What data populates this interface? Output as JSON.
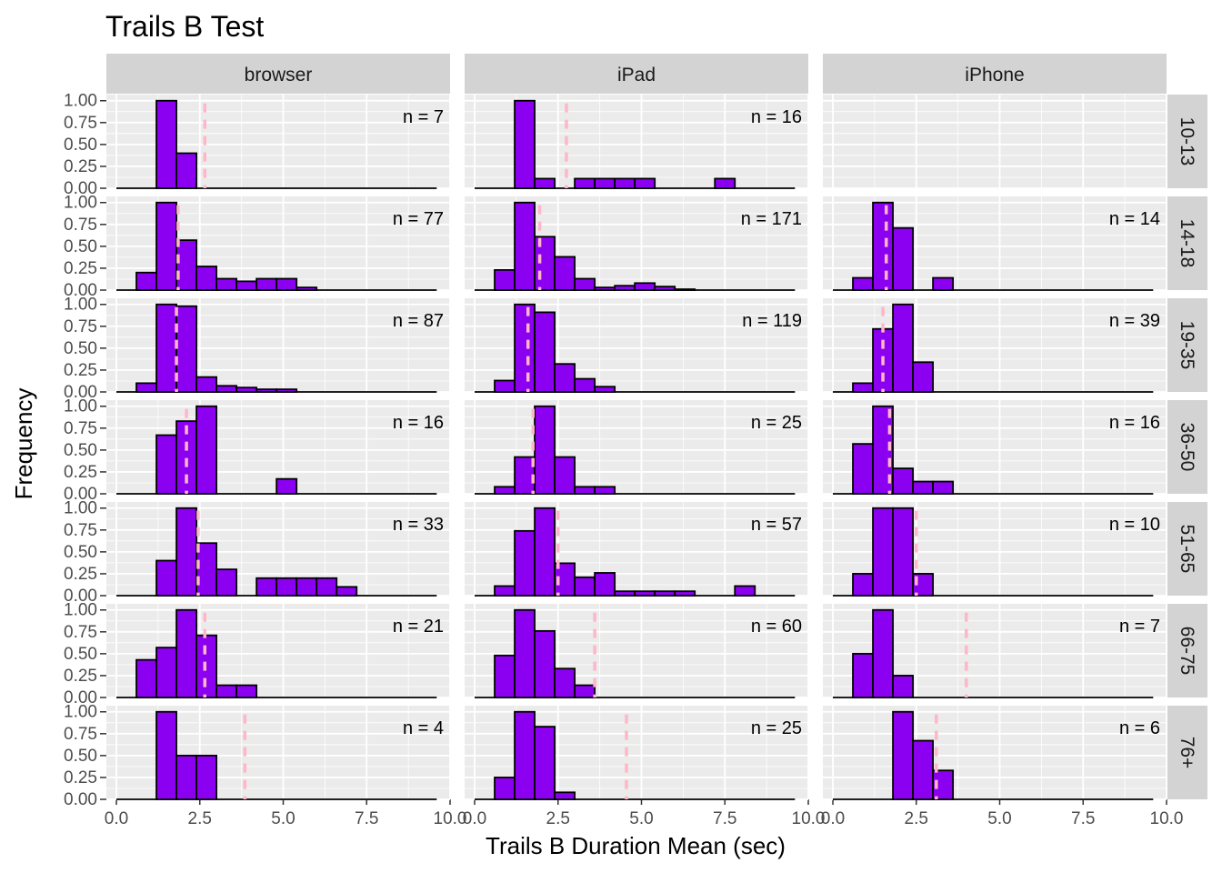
{
  "chart_data": {
    "type": "bar",
    "title": "Trails B Test",
    "xlabel": "Trails B Duration Mean (sec)",
    "ylabel": "Frequency",
    "xlim": [
      -0.3,
      10.0
    ],
    "ylim": [
      0,
      1.07
    ],
    "x_ticks": [
      0.0,
      2.5,
      5.0,
      7.5,
      10.0
    ],
    "x_tick_labels": [
      "0.0",
      "2.5",
      "5.0",
      "7.5",
      "10.0"
    ],
    "y_ticks": [
      0.0,
      0.25,
      0.5,
      0.75,
      1.0
    ],
    "y_tick_labels": [
      "0.00",
      "0.25",
      "0.50",
      "0.75",
      "1.00"
    ],
    "bin_start": 0.6,
    "bin_width": 0.6,
    "bins": 15,
    "baseline_x": [
      0,
      9.6
    ],
    "columns": [
      "browser",
      "iPad",
      "iPhone"
    ],
    "rows": [
      "10-13",
      "14-18",
      "19-35",
      "36-50",
      "51-65",
      "66-75",
      "76+"
    ],
    "grid": true,
    "legend": "none",
    "colors": {
      "bar_fill": "#8b00f0",
      "bar_stroke": "#000000",
      "mean_line": "#ffb6c8",
      "panel_bg": "#ebebeb",
      "grid": "#ffffff",
      "strip_bg": "#d3d3d3"
    },
    "panels": [
      {
        "col": "browser",
        "row": "10-13",
        "n_label": "n = 7",
        "mean": 2.65,
        "values": [
          0,
          1.0,
          0.4,
          0,
          0,
          0,
          0,
          0,
          0,
          0,
          0,
          0,
          0,
          0,
          0
        ]
      },
      {
        "col": "iPad",
        "row": "10-13",
        "n_label": "n = 16",
        "mean": 2.75,
        "values": [
          0,
          1.0,
          0.11,
          0,
          0.11,
          0.11,
          0.11,
          0.11,
          0,
          0,
          0,
          0.11,
          0,
          0,
          0
        ]
      },
      {
        "col": "iPhone",
        "row": "10-13",
        "n_label": "",
        "mean": null,
        "values": []
      },
      {
        "col": "browser",
        "row": "14-18",
        "n_label": "n = 77",
        "mean": 1.85,
        "values": [
          0.2,
          1.0,
          0.57,
          0.27,
          0.13,
          0.1,
          0.13,
          0.13,
          0.03,
          0,
          0,
          0,
          0,
          0,
          0
        ]
      },
      {
        "col": "iPad",
        "row": "14-18",
        "n_label": "n = 171",
        "mean": 1.95,
        "values": [
          0.23,
          1.0,
          0.61,
          0.38,
          0.13,
          0.03,
          0.05,
          0.08,
          0.04,
          0.01,
          0,
          0,
          0,
          0,
          0
        ]
      },
      {
        "col": "iPhone",
        "row": "14-18",
        "n_label": "n = 14",
        "mean": 1.6,
        "values": [
          0.14,
          1.0,
          0.71,
          0,
          0.14,
          0,
          0,
          0,
          0,
          0,
          0,
          0,
          0,
          0,
          0
        ]
      },
      {
        "col": "browser",
        "row": "19-35",
        "n_label": "n = 87",
        "mean": 1.8,
        "values": [
          0.1,
          1.0,
          0.98,
          0.17,
          0.07,
          0.05,
          0.03,
          0.03,
          0,
          0,
          0,
          0,
          0,
          0,
          0
        ]
      },
      {
        "col": "iPad",
        "row": "19-35",
        "n_label": "n = 119",
        "mean": 1.6,
        "values": [
          0.13,
          1.0,
          0.91,
          0.32,
          0.15,
          0.06,
          0,
          0,
          0,
          0,
          0,
          0,
          0,
          0,
          0
        ]
      },
      {
        "col": "iPhone",
        "row": "19-35",
        "n_label": "n = 39",
        "mean": 1.5,
        "values": [
          0.1,
          0.72,
          1.0,
          0.34,
          0,
          0,
          0,
          0,
          0,
          0,
          0,
          0,
          0,
          0,
          0
        ]
      },
      {
        "col": "browser",
        "row": "36-50",
        "n_label": "n = 16",
        "mean": 2.1,
        "values": [
          0,
          0.67,
          0.83,
          1.0,
          0,
          0,
          0,
          0.17,
          0,
          0,
          0,
          0,
          0,
          0,
          0
        ]
      },
      {
        "col": "iPad",
        "row": "36-50",
        "n_label": "n = 25",
        "mean": 1.75,
        "values": [
          0.08,
          0.42,
          1.0,
          0.42,
          0.08,
          0.08,
          0,
          0,
          0,
          0,
          0,
          0,
          0,
          0,
          0
        ]
      },
      {
        "col": "iPhone",
        "row": "36-50",
        "n_label": "n = 16",
        "mean": 1.7,
        "values": [
          0.57,
          1.0,
          0.29,
          0.14,
          0.14,
          0,
          0,
          0,
          0,
          0,
          0,
          0,
          0,
          0,
          0
        ]
      },
      {
        "col": "browser",
        "row": "51-65",
        "n_label": "n = 33",
        "mean": 2.45,
        "values": [
          0,
          0.4,
          1.0,
          0.6,
          0.3,
          0,
          0.2,
          0.2,
          0.2,
          0.2,
          0.1,
          0,
          0,
          0,
          0
        ]
      },
      {
        "col": "iPad",
        "row": "51-65",
        "n_label": "n = 57",
        "mean": 2.5,
        "values": [
          0.11,
          0.74,
          1.0,
          0.37,
          0.21,
          0.26,
          0.05,
          0.05,
          0.05,
          0.05,
          0,
          0,
          0.11,
          0,
          0
        ]
      },
      {
        "col": "iPhone",
        "row": "51-65",
        "n_label": "n = 10",
        "mean": 2.5,
        "values": [
          0.25,
          1.0,
          1.0,
          0.25,
          0,
          0,
          0,
          0,
          0,
          0,
          0,
          0,
          0,
          0,
          0
        ]
      },
      {
        "col": "browser",
        "row": "66-75",
        "n_label": "n = 21",
        "mean": 2.65,
        "values": [
          0.43,
          0.57,
          1.0,
          0.71,
          0.14,
          0.14,
          0,
          0,
          0,
          0,
          0,
          0,
          0,
          0,
          0
        ]
      },
      {
        "col": "iPad",
        "row": "66-75",
        "n_label": "n = 60",
        "mean": 3.6,
        "values": [
          0.48,
          1.0,
          0.76,
          0.33,
          0.14,
          0,
          0,
          0,
          0,
          0,
          0,
          0,
          0,
          0,
          0
        ]
      },
      {
        "col": "iPhone",
        "row": "66-75",
        "n_label": "n = 7",
        "mean": 4.0,
        "values": [
          0.5,
          1.0,
          0.25,
          0,
          0,
          0,
          0,
          0,
          0,
          0,
          0,
          0,
          0,
          0,
          0
        ]
      },
      {
        "col": "browser",
        "row": "76+",
        "n_label": "n = 4",
        "mean": 3.85,
        "values": [
          0,
          1.0,
          0.5,
          0.5,
          0,
          0,
          0,
          0,
          0,
          0,
          0,
          0,
          0,
          0,
          0
        ]
      },
      {
        "col": "iPad",
        "row": "76+",
        "n_label": "n = 25",
        "mean": 4.55,
        "values": [
          0.25,
          1.0,
          0.83,
          0.08,
          0,
          0,
          0,
          0,
          0,
          0,
          0,
          0,
          0,
          0,
          0
        ]
      },
      {
        "col": "iPhone",
        "row": "76+",
        "n_label": "n = 6",
        "mean": 3.1,
        "values": [
          0,
          0,
          1.0,
          0.67,
          0.33,
          0,
          0,
          0,
          0,
          0,
          0,
          0,
          0,
          0,
          0
        ]
      }
    ]
  }
}
